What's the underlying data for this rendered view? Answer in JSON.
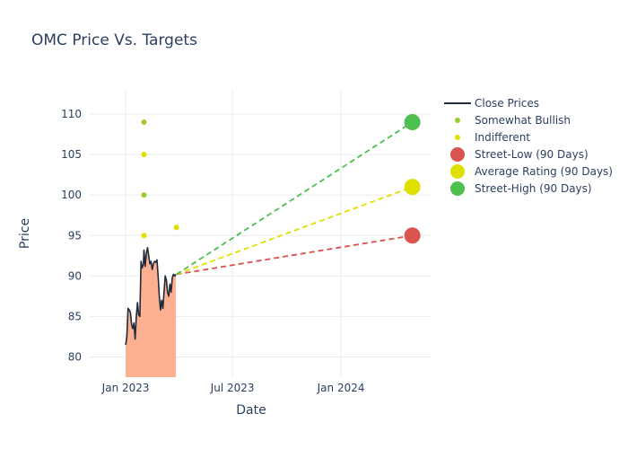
{
  "chart_data": {
    "type": "line",
    "title": "OMC Price Vs. Targets",
    "xlabel": "Date",
    "ylabel": "Price",
    "x_range": [
      "2022-11-01",
      "2024-06-01"
    ],
    "x_ticks": [
      {
        "date": "2023-01-01",
        "label": "Jan 2023"
      },
      {
        "date": "2023-07-01",
        "label": "Jul 2023"
      },
      {
        "date": "2024-01-01",
        "label": "Jan 2024"
      }
    ],
    "ylim": [
      77.5,
      113
    ],
    "y_ticks": [
      80,
      85,
      90,
      95,
      100,
      105,
      110
    ],
    "grid": true,
    "legend_position": "right",
    "colors": {
      "close": "#1f2a3a",
      "close_fill": "#fdb08f",
      "bullish": "#9acd32",
      "indifferent": "#e0e000",
      "low": "#d9534f",
      "avg": "#e0e000",
      "high": "#4fbf4f"
    },
    "close_prices": {
      "name": "Close Prices",
      "x": [
        "2023-01-01",
        "2023-01-03",
        "2023-01-05",
        "2023-01-07",
        "2023-01-09",
        "2023-01-11",
        "2023-01-13",
        "2023-01-15",
        "2023-01-17",
        "2023-01-19",
        "2023-01-21",
        "2023-01-23",
        "2023-01-25",
        "2023-01-27",
        "2023-01-29",
        "2023-01-31",
        "2023-02-01",
        "2023-02-03",
        "2023-02-05",
        "2023-02-07",
        "2023-02-09",
        "2023-02-11",
        "2023-02-13",
        "2023-02-15",
        "2023-02-17",
        "2023-02-19",
        "2023-02-21",
        "2023-02-23",
        "2023-02-25",
        "2023-02-27",
        "2023-03-01",
        "2023-03-03",
        "2023-03-05",
        "2023-03-07",
        "2023-03-09",
        "2023-03-11",
        "2023-03-13",
        "2023-03-15",
        "2023-03-17",
        "2023-03-19",
        "2023-03-21",
        "2023-03-23",
        "2023-03-25",
        "2023-03-27"
      ],
      "y": [
        81.5,
        82.5,
        86.0,
        85.8,
        85.5,
        84.0,
        83.5,
        84.2,
        82.2,
        85.0,
        86.7,
        85.2,
        85.0,
        91.8,
        91.0,
        91.5,
        93.2,
        91.2,
        92.8,
        93.5,
        92.5,
        91.5,
        91.8,
        90.8,
        91.5,
        91.8,
        91.7,
        92.0,
        90.0,
        87.5,
        85.8,
        87.0,
        86.0,
        88.0,
        90.0,
        89.5,
        88.0,
        87.5,
        89.0,
        88.0,
        89.8,
        90.2,
        90.0,
        90.2
      ]
    },
    "somewhat_bullish": {
      "name": "Somewhat Bullish",
      "x": [
        "2023-02-01",
        "2023-02-01"
      ],
      "y": [
        109,
        100
      ]
    },
    "indifferent": {
      "name": "Indifferent",
      "x": [
        "2023-02-01",
        "2023-02-01",
        "2023-03-28"
      ],
      "y": [
        105,
        95,
        96
      ]
    },
    "targets": [
      {
        "name": "Street-Low (90 Days)",
        "x0": "2023-03-28",
        "y0": 90.2,
        "x1": "2024-05-01",
        "y1": 95,
        "color": "#d9534f"
      },
      {
        "name": "Average Rating (90 Days)",
        "x0": "2023-03-28",
        "y0": 90.2,
        "x1": "2024-05-01",
        "y1": 101,
        "color": "#e0e000"
      },
      {
        "name": "Street-High (90 Days)",
        "x0": "2023-03-28",
        "y0": 90.2,
        "x1": "2024-05-01",
        "y1": 109,
        "color": "#4fbf4f"
      }
    ],
    "legend": [
      {
        "label": "Close Prices",
        "kind": "line",
        "color": "#1f2a3a"
      },
      {
        "label": "Somewhat Bullish",
        "kind": "small-dot",
        "color": "#9acd32"
      },
      {
        "label": "Indifferent",
        "kind": "small-dot",
        "color": "#e0e000"
      },
      {
        "label": "Street-Low (90 Days)",
        "kind": "big-dot",
        "color": "#d9534f"
      },
      {
        "label": "Average Rating (90 Days)",
        "kind": "big-dot",
        "color": "#e0e000"
      },
      {
        "label": "Street-High (90 Days)",
        "kind": "big-dot",
        "color": "#4fbf4f"
      }
    ]
  }
}
